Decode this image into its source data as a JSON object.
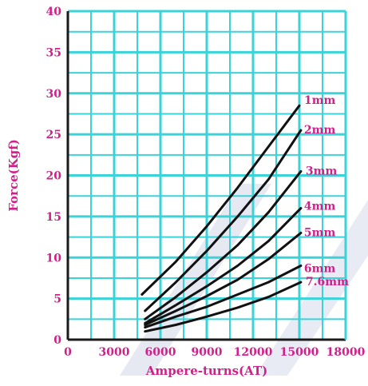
{
  "chart_data": {
    "type": "line",
    "title": "",
    "xlabel": "Ampere-turns(AT)",
    "ylabel": "Force(Kgf)",
    "xlim": [
      0,
      18000
    ],
    "ylim": [
      0,
      40
    ],
    "x_ticks": [
      "0",
      "3000",
      "6000",
      "9000",
      "12000",
      "15000",
      "18000"
    ],
    "y_ticks": [
      "0",
      "5",
      "10",
      "15",
      "20",
      "25",
      "30",
      "35",
      "40"
    ],
    "grid": true,
    "legend": "inline labels at line ends",
    "colors": {
      "grid": "#39d3d9",
      "axis": "#1a1a1a",
      "labels": "#d0208a",
      "lines": "#111111"
    },
    "series": [
      {
        "name": "1mm",
        "x": [
          4800,
          7000,
          9000,
          11000,
          13000,
          15000
        ],
        "y": [
          5.5,
          9.5,
          13.8,
          18.5,
          23.5,
          28.5
        ]
      },
      {
        "name": "2mm",
        "x": [
          5000,
          7000,
          9000,
          11000,
          13000,
          15100
        ],
        "y": [
          3.5,
          7.0,
          10.8,
          15.0,
          19.5,
          25.5
        ]
      },
      {
        "name": "3mm",
        "x": [
          5000,
          7000,
          9000,
          11000,
          13000,
          15100
        ],
        "y": [
          2.5,
          5.2,
          8.2,
          11.5,
          15.5,
          20.5
        ]
      },
      {
        "name": "4mm",
        "x": [
          5000,
          7000,
          9000,
          11000,
          13000,
          15100
        ],
        "y": [
          2.0,
          4.2,
          6.5,
          9.0,
          12.0,
          16.0
        ]
      },
      {
        "name": "5mm",
        "x": [
          5000,
          7000,
          9000,
          11000,
          13000,
          15100
        ],
        "y": [
          1.8,
          3.5,
          5.3,
          7.3,
          9.8,
          13.0
        ]
      },
      {
        "name": "6mm",
        "x": [
          5000,
          7000,
          9000,
          11000,
          13000,
          15100
        ],
        "y": [
          1.5,
          2.8,
          4.0,
          5.5,
          7.0,
          9.0
        ]
      },
      {
        "name": "7.6mm",
        "x": [
          5000,
          7000,
          9000,
          11000,
          13000,
          15100
        ],
        "y": [
          1.0,
          1.8,
          2.8,
          3.9,
          5.2,
          7.0
        ]
      }
    ]
  }
}
